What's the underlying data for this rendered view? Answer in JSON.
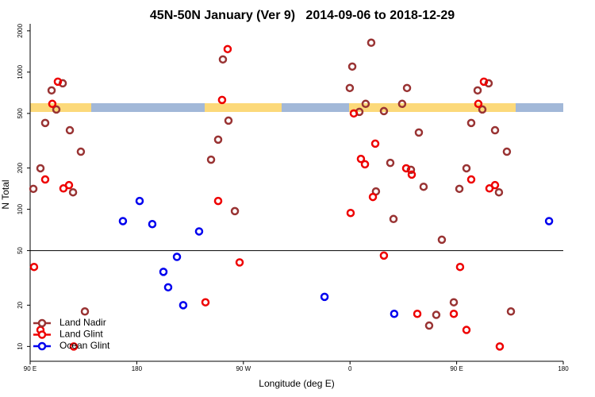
{
  "chart_data": {
    "type": "scatter",
    "title": "45N-50N January (Ver 9)   2014-09-06 to 2018-12-29",
    "x_label": "Longitude (deg E)",
    "y_label": "N Total",
    "log_y": true,
    "xlim": [
      90,
      540
    ],
    "ylim": [
      7.8,
      2250
    ],
    "xticks": [
      {
        "value": 90,
        "label": "90 E"
      },
      {
        "value": 180,
        "label": "180"
      },
      {
        "value": 270,
        "label": "90 W"
      },
      {
        "value": 360,
        "label": "0"
      },
      {
        "value": 450,
        "label": "90 E"
      },
      {
        "value": 540,
        "label": "180"
      }
    ],
    "yticks": [
      10,
      20,
      50,
      100,
      200,
      500,
      1000,
      2000
    ],
    "hline": 50,
    "legend": "bottom-left",
    "series": [
      {
        "name": "Land Nadir",
        "color": "#993333",
        "x": [
          92.7,
          98.7,
          102.7,
          108.1,
          112.1,
          117.5,
          123.5,
          126.2,
          132.8,
          136.2,
          242.7,
          248.7,
          252.7,
          257.4,
          262.8,
          359.8,
          361.9,
          367.9,
          373.2,
          377.9,
          381.9,
          388.6,
          394.0,
          396.7,
          404.0,
          408.1,
          411.4,
          418.1,
          422.1,
          437.5,
          447.6,
          452.3,
          458.3,
          462.3,
          467.7,
          471.7,
          477.0,
          482.4,
          485.7,
          492.4,
          495.8,
          426.8,
          432.8
        ],
        "values": [
          141,
          199,
          426,
          736,
          534,
          829,
          377,
          133,
          263,
          18,
          230,
          322,
          1238,
          443,
          97,
          766,
          1098,
          513,
          587,
          1639,
          135,
          520,
          218,
          85,
          587,
          766,
          194,
          363,
          146,
          60,
          21,
          141,
          199,
          426,
          736,
          534,
          829,
          377,
          133,
          263,
          18,
          14.2,
          17
        ]
      },
      {
        "name": "Land Glint",
        "color": "#ee0000",
        "x": [
          93.3,
          98.7,
          102.7,
          108.7,
          113.4,
          118.1,
          122.8,
          126.8,
          238.0,
          248.7,
          252.0,
          256.7,
          266.8,
          360.5,
          363.2,
          369.2,
          372.6,
          379.3,
          381.3,
          388.6,
          407.4,
          412.1,
          416.8,
          447.6,
          452.9,
          458.3,
          462.3,
          468.3,
          473.0,
          477.7,
          482.4,
          486.4
        ],
        "values": [
          38,
          13.2,
          165,
          587,
          852,
          142,
          150,
          10,
          21,
          115,
          627,
          1472,
          41,
          94,
          500,
          233,
          213,
          123,
          301,
          46,
          199,
          179,
          17.3,
          17.3,
          38,
          13.2,
          165,
          587,
          852,
          142,
          150,
          10
        ]
      },
      {
        "name": "Ocean Glint",
        "color": "#0000ee",
        "x": [
          168.3,
          182.4,
          193.1,
          202.5,
          206.5,
          213.9,
          219.2,
          232.6,
          338.5,
          397.3,
          528.0
        ],
        "values": [
          82,
          115,
          78,
          35,
          27,
          45,
          20,
          69,
          23,
          17.3,
          82
        ]
      }
    ]
  }
}
